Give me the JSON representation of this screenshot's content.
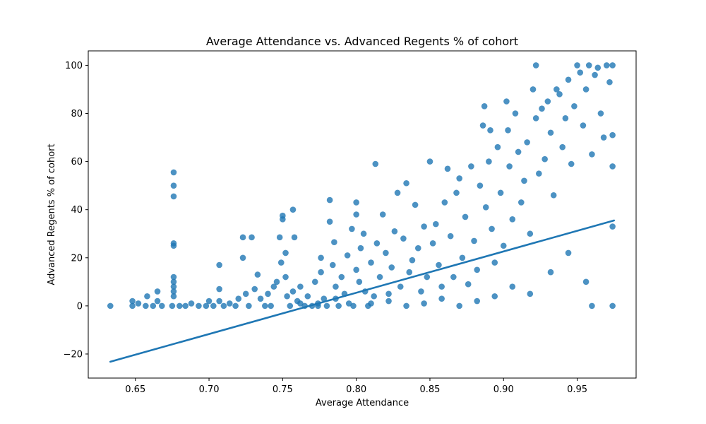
{
  "chart_data": {
    "type": "scatter",
    "title": "Average Attendance vs. Advanced Regents % of cohort",
    "xlabel": "Average Attendance",
    "ylabel": "Advanced Regents % of cohort",
    "xlim": [
      0.618,
      0.99
    ],
    "ylim": [
      -30,
      106
    ],
    "x_ticks": [
      0.65,
      0.7,
      0.75,
      0.8,
      0.85,
      0.9,
      0.95
    ],
    "x_tick_labels": [
      "0.65",
      "0.70",
      "0.75",
      "0.80",
      "0.85",
      "0.90",
      "0.95"
    ],
    "y_ticks": [
      -20,
      0,
      20,
      40,
      60,
      80,
      100
    ],
    "y_tick_labels": [
      "−20",
      "0",
      "20",
      "40",
      "60",
      "80",
      "100"
    ],
    "grid": false,
    "legend": "none",
    "colors": {
      "points": "#1f77b4",
      "regression_line": "#1f77b4"
    },
    "series": [
      {
        "kind": "points",
        "note_x": "Average Attendance",
        "points": [
          [
            0.633,
            0
          ],
          [
            0.648,
            0
          ],
          [
            0.648,
            2
          ],
          [
            0.652,
            1
          ],
          [
            0.657,
            0
          ],
          [
            0.658,
            4
          ],
          [
            0.662,
            0
          ],
          [
            0.665,
            6
          ],
          [
            0.665,
            2
          ],
          [
            0.668,
            0
          ],
          [
            0.675,
            0
          ],
          [
            0.676,
            12
          ],
          [
            0.676,
            10
          ],
          [
            0.676,
            8
          ],
          [
            0.676,
            6
          ],
          [
            0.676,
            4
          ],
          [
            0.676,
            25
          ],
          [
            0.676,
            26
          ],
          [
            0.676,
            45.5
          ],
          [
            0.676,
            50
          ],
          [
            0.676,
            55.5
          ],
          [
            0.68,
            0
          ],
          [
            0.684,
            0
          ],
          [
            0.688,
            1
          ],
          [
            0.693,
            0
          ],
          [
            0.698,
            0
          ],
          [
            0.7,
            2
          ],
          [
            0.703,
            0
          ],
          [
            0.707,
            17
          ],
          [
            0.707,
            7
          ],
          [
            0.707,
            2
          ],
          [
            0.71,
            0
          ],
          [
            0.714,
            1
          ],
          [
            0.718,
            0
          ],
          [
            0.72,
            3
          ],
          [
            0.723,
            20
          ],
          [
            0.723,
            28.5
          ],
          [
            0.725,
            5
          ],
          [
            0.727,
            0
          ],
          [
            0.729,
            28.5
          ],
          [
            0.731,
            7
          ],
          [
            0.733,
            13
          ],
          [
            0.735,
            3
          ],
          [
            0.738,
            0
          ],
          [
            0.74,
            5
          ],
          [
            0.742,
            0
          ],
          [
            0.744,
            8
          ],
          [
            0.746,
            10
          ],
          [
            0.748,
            28.5
          ],
          [
            0.749,
            18
          ],
          [
            0.75,
            36
          ],
          [
            0.75,
            37.5
          ],
          [
            0.752,
            22
          ],
          [
            0.752,
            12
          ],
          [
            0.753,
            4
          ],
          [
            0.755,
            0
          ],
          [
            0.757,
            6
          ],
          [
            0.757,
            40
          ],
          [
            0.758,
            28.5
          ],
          [
            0.76,
            2
          ],
          [
            0.762,
            8
          ],
          [
            0.765,
            0
          ],
          [
            0.767,
            4
          ],
          [
            0.77,
            0
          ],
          [
            0.772,
            10
          ],
          [
            0.774,
            1
          ],
          [
            0.776,
            20
          ],
          [
            0.776,
            14
          ],
          [
            0.778,
            3
          ],
          [
            0.78,
            0
          ],
          [
            0.782,
            44
          ],
          [
            0.782,
            35
          ],
          [
            0.784,
            17
          ],
          [
            0.785,
            26.5
          ],
          [
            0.786,
            8
          ],
          [
            0.788,
            0
          ],
          [
            0.79,
            12
          ],
          [
            0.792,
            5
          ],
          [
            0.794,
            21
          ],
          [
            0.795,
            1
          ],
          [
            0.797,
            32
          ],
          [
            0.8,
            43
          ],
          [
            0.8,
            38
          ],
          [
            0.8,
            15
          ],
          [
            0.802,
            10
          ],
          [
            0.803,
            24
          ],
          [
            0.805,
            30
          ],
          [
            0.806,
            6
          ],
          [
            0.808,
            0
          ],
          [
            0.81,
            18
          ],
          [
            0.812,
            4
          ],
          [
            0.813,
            59
          ],
          [
            0.814,
            26
          ],
          [
            0.816,
            12
          ],
          [
            0.818,
            38
          ],
          [
            0.82,
            22
          ],
          [
            0.822,
            2
          ],
          [
            0.824,
            16
          ],
          [
            0.826,
            31
          ],
          [
            0.828,
            47
          ],
          [
            0.83,
            8
          ],
          [
            0.832,
            28
          ],
          [
            0.834,
            51
          ],
          [
            0.836,
            14
          ],
          [
            0.838,
            19
          ],
          [
            0.84,
            42
          ],
          [
            0.842,
            24
          ],
          [
            0.844,
            6
          ],
          [
            0.846,
            33
          ],
          [
            0.848,
            12
          ],
          [
            0.85,
            60
          ],
          [
            0.852,
            26
          ],
          [
            0.854,
            34
          ],
          [
            0.856,
            17
          ],
          [
            0.858,
            8
          ],
          [
            0.86,
            43
          ],
          [
            0.862,
            57
          ],
          [
            0.864,
            29
          ],
          [
            0.866,
            12
          ],
          [
            0.868,
            47
          ],
          [
            0.87,
            53
          ],
          [
            0.872,
            20
          ],
          [
            0.874,
            37
          ],
          [
            0.876,
            9
          ],
          [
            0.878,
            58
          ],
          [
            0.88,
            27
          ],
          [
            0.882,
            15
          ],
          [
            0.884,
            50
          ],
          [
            0.886,
            75
          ],
          [
            0.887,
            83
          ],
          [
            0.888,
            41
          ],
          [
            0.89,
            60
          ],
          [
            0.891,
            73
          ],
          [
            0.892,
            32
          ],
          [
            0.894,
            18
          ],
          [
            0.896,
            66
          ],
          [
            0.898,
            47
          ],
          [
            0.9,
            25
          ],
          [
            0.902,
            85
          ],
          [
            0.903,
            73
          ],
          [
            0.904,
            58
          ],
          [
            0.906,
            36
          ],
          [
            0.908,
            80
          ],
          [
            0.91,
            64
          ],
          [
            0.912,
            43
          ],
          [
            0.914,
            52
          ],
          [
            0.916,
            68
          ],
          [
            0.918,
            30
          ],
          [
            0.92,
            90
          ],
          [
            0.922,
            100
          ],
          [
            0.922,
            78
          ],
          [
            0.924,
            55
          ],
          [
            0.926,
            82
          ],
          [
            0.928,
            61
          ],
          [
            0.93,
            85
          ],
          [
            0.932,
            72
          ],
          [
            0.934,
            46
          ],
          [
            0.936,
            90
          ],
          [
            0.938,
            88
          ],
          [
            0.94,
            66
          ],
          [
            0.942,
            78
          ],
          [
            0.944,
            94
          ],
          [
            0.946,
            59
          ],
          [
            0.948,
            83
          ],
          [
            0.95,
            100
          ],
          [
            0.952,
            97
          ],
          [
            0.954,
            75
          ],
          [
            0.956,
            90
          ],
          [
            0.958,
            100
          ],
          [
            0.96,
            63
          ],
          [
            0.962,
            96
          ],
          [
            0.964,
            99
          ],
          [
            0.966,
            80
          ],
          [
            0.968,
            70
          ],
          [
            0.97,
            100
          ],
          [
            0.972,
            93
          ],
          [
            0.974,
            100
          ],
          [
            0.974,
            71
          ],
          [
            0.974,
            58
          ],
          [
            0.974,
            33
          ],
          [
            0.974,
            0
          ],
          [
            0.96,
            0
          ],
          [
            0.956,
            10
          ],
          [
            0.944,
            22
          ],
          [
            0.932,
            14
          ],
          [
            0.918,
            5
          ],
          [
            0.906,
            8
          ],
          [
            0.894,
            4
          ],
          [
            0.882,
            2
          ],
          [
            0.87,
            0
          ],
          [
            0.858,
            3
          ],
          [
            0.846,
            1
          ],
          [
            0.834,
            0
          ],
          [
            0.822,
            5
          ],
          [
            0.81,
            1
          ],
          [
            0.798,
            0
          ],
          [
            0.786,
            3
          ],
          [
            0.774,
            0
          ],
          [
            0.762,
            1
          ]
        ]
      },
      {
        "kind": "regression_line",
        "x": [
          0.633,
          0.975
        ],
        "y": [
          -23.2,
          35.5
        ]
      }
    ]
  }
}
